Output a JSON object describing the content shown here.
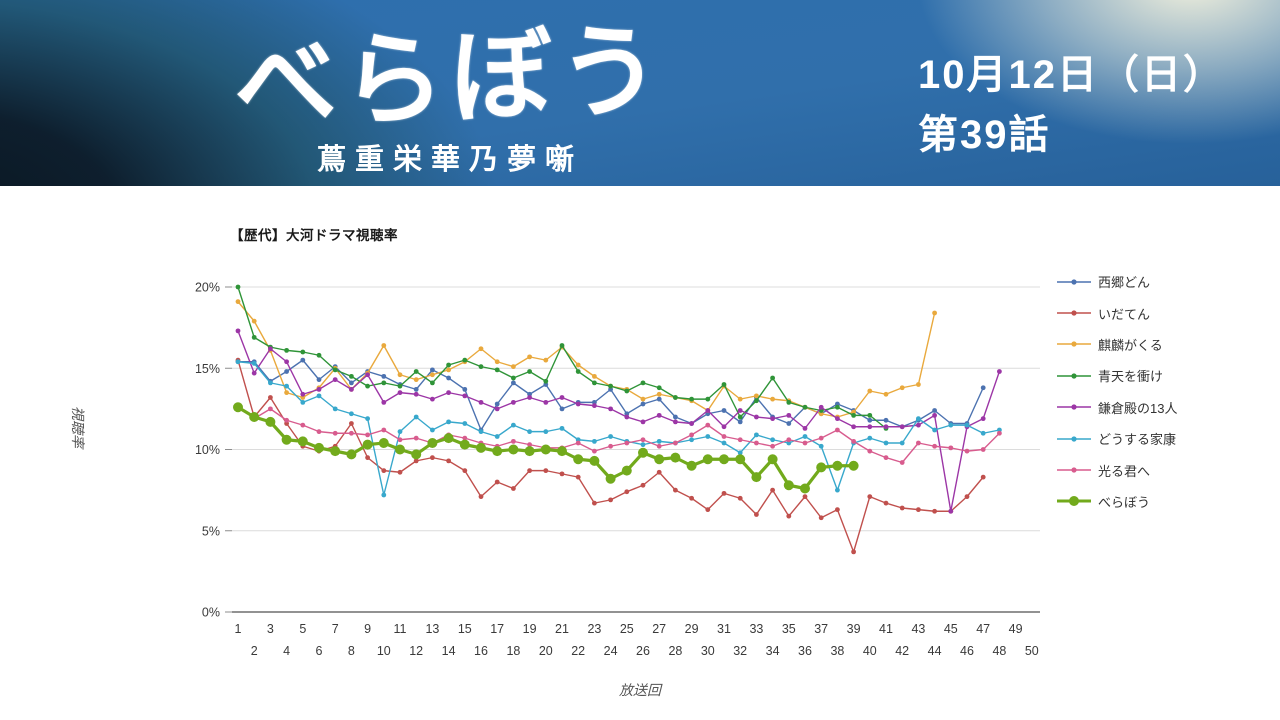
{
  "header": {
    "title": "べらぼう",
    "subtitle": "蔦重栄華乃夢噺",
    "date_line": "10月12日（日）",
    "episode_line": "第39話"
  },
  "chart_data": {
    "type": "line",
    "title": "【歴代】大河ドラマ視聴率",
    "xlabel": "放送回",
    "ylabel": "視聴率",
    "x_range": [
      1,
      50
    ],
    "ylim": [
      0,
      20
    ],
    "y_tick_labels": [
      "0%",
      "5%",
      "10%",
      "15%",
      "20%"
    ],
    "grid": "horizontal",
    "legend_position": "right",
    "series": [
      {
        "name": "西郷どん",
        "color": "#4c72b0",
        "line_width": 1.4,
        "marker_radius": 2.4,
        "values": [
          15.4,
          15.4,
          14.2,
          14.8,
          15.5,
          14.3,
          15.1,
          14.1,
          14.8,
          14.5,
          14.0,
          13.7,
          14.9,
          14.4,
          13.7,
          11.2,
          12.8,
          14.1,
          13.4,
          14.0,
          12.5,
          12.9,
          12.9,
          13.7,
          12.2,
          12.8,
          13.1,
          12.0,
          11.6,
          12.2,
          12.4,
          11.7,
          13.2,
          12.0,
          11.6,
          12.6,
          12.2,
          12.8,
          12.4,
          11.8,
          11.8,
          11.4,
          11.8,
          12.4,
          11.6,
          11.6,
          13.8
        ]
      },
      {
        "name": "いだてん",
        "color": "#c0504d",
        "line_width": 1.4,
        "marker_radius": 2.4,
        "values": [
          15.5,
          12.0,
          13.2,
          11.6,
          10.2,
          9.9,
          10.2,
          11.6,
          9.5,
          8.7,
          8.6,
          9.3,
          9.5,
          9.3,
          8.7,
          7.1,
          8.0,
          7.6,
          8.7,
          8.7,
          8.5,
          8.3,
          6.7,
          6.9,
          7.4,
          7.8,
          8.6,
          7.5,
          7.0,
          6.3,
          7.3,
          7.0,
          6.0,
          7.5,
          5.9,
          7.1,
          5.8,
          6.3,
          3.7,
          7.1,
          6.7,
          6.4,
          6.3,
          6.2,
          6.2,
          7.1,
          8.3
        ]
      },
      {
        "name": "麒麟がくる",
        "color": "#e9a93d",
        "line_width": 1.4,
        "marker_radius": 2.4,
        "values": [
          19.1,
          17.9,
          16.1,
          13.5,
          13.2,
          13.8,
          15.0,
          13.7,
          14.7,
          16.4,
          14.6,
          14.3,
          14.6,
          14.9,
          15.4,
          16.2,
          15.4,
          15.1,
          15.7,
          15.5,
          16.3,
          15.2,
          14.5,
          13.9,
          13.7,
          13.1,
          13.4,
          13.2,
          13.0,
          12.4,
          13.9,
          13.1,
          13.3,
          13.1,
          13.0,
          12.6,
          12.2,
          12.0,
          12.3,
          13.6,
          13.4,
          13.8,
          14.0,
          18.4
        ]
      },
      {
        "name": "青天を衝け",
        "color": "#2f9438",
        "line_width": 1.4,
        "marker_radius": 2.4,
        "values": [
          20.0,
          16.9,
          16.3,
          16.1,
          16.0,
          15.8,
          14.9,
          14.5,
          13.9,
          14.1,
          13.9,
          14.8,
          14.1,
          15.2,
          15.5,
          15.1,
          14.9,
          14.4,
          14.8,
          14.2,
          16.4,
          14.8,
          14.1,
          13.9,
          13.6,
          14.1,
          13.8,
          13.2,
          13.1,
          13.1,
          14.0,
          12.0,
          13.0,
          14.4,
          12.9,
          12.6,
          12.4,
          12.6,
          12.1,
          12.1,
          11.3
        ]
      },
      {
        "name": "鎌倉殿の13人",
        "color": "#9c36a6",
        "line_width": 1.4,
        "marker_radius": 2.4,
        "values": [
          17.3,
          14.7,
          16.2,
          15.4,
          13.4,
          13.7,
          14.3,
          13.7,
          14.6,
          12.9,
          13.5,
          13.4,
          13.1,
          13.5,
          13.3,
          12.9,
          12.5,
          12.9,
          13.2,
          12.9,
          13.2,
          12.8,
          12.7,
          12.5,
          12.0,
          11.7,
          12.1,
          11.7,
          11.6,
          12.4,
          11.4,
          12.4,
          12.0,
          11.9,
          12.1,
          11.3,
          12.6,
          11.9,
          11.4,
          11.4,
          11.4,
          11.4,
          11.5,
          12.1,
          6.2,
          11.4,
          11.9,
          14.8
        ]
      },
      {
        "name": "どうする家康",
        "color": "#38a8cc",
        "line_width": 1.4,
        "marker_radius": 2.4,
        "values": [
          15.4,
          15.3,
          14.1,
          13.9,
          12.9,
          13.3,
          12.5,
          12.2,
          11.9,
          7.2,
          11.1,
          12.0,
          11.2,
          11.7,
          11.6,
          11.1,
          10.8,
          11.5,
          11.1,
          11.1,
          11.3,
          10.6,
          10.5,
          10.8,
          10.5,
          10.3,
          10.5,
          10.4,
          10.6,
          10.8,
          10.4,
          9.8,
          10.9,
          10.6,
          10.4,
          10.8,
          10.2,
          7.5,
          10.4,
          10.7,
          10.4,
          10.4,
          11.9,
          11.2,
          11.5,
          11.5,
          11.0,
          11.2
        ]
      },
      {
        "name": "光る君へ",
        "color": "#d85c8e",
        "line_width": 1.4,
        "marker_radius": 2.4,
        "values": [
          12.7,
          11.9,
          12.5,
          11.8,
          11.5,
          11.1,
          11.0,
          11.0,
          10.9,
          11.2,
          10.6,
          10.7,
          10.4,
          10.9,
          10.7,
          10.4,
          10.2,
          10.5,
          10.3,
          10.1,
          10.1,
          10.4,
          9.9,
          10.2,
          10.4,
          10.6,
          10.2,
          10.4,
          10.9,
          11.5,
          10.8,
          10.6,
          10.4,
          10.2,
          10.6,
          10.4,
          10.7,
          11.2,
          10.5,
          9.9,
          9.5,
          9.2,
          10.4,
          10.2,
          10.1,
          9.9,
          10.0,
          11.0
        ]
      },
      {
        "name": "べらぼう",
        "color": "#72aa1c",
        "line_width": 3.2,
        "marker_radius": 5,
        "values": [
          12.6,
          12.0,
          11.7,
          10.6,
          10.5,
          10.1,
          9.9,
          9.7,
          10.3,
          10.4,
          10.0,
          9.7,
          10.4,
          10.7,
          10.3,
          10.1,
          9.9,
          10.0,
          9.9,
          10.0,
          9.9,
          9.4,
          9.3,
          8.2,
          8.7,
          9.8,
          9.4,
          9.5,
          9.0,
          9.4,
          9.4,
          9.4,
          8.3,
          9.4,
          7.8,
          7.6,
          8.9,
          9.0,
          9.0
        ]
      }
    ]
  }
}
